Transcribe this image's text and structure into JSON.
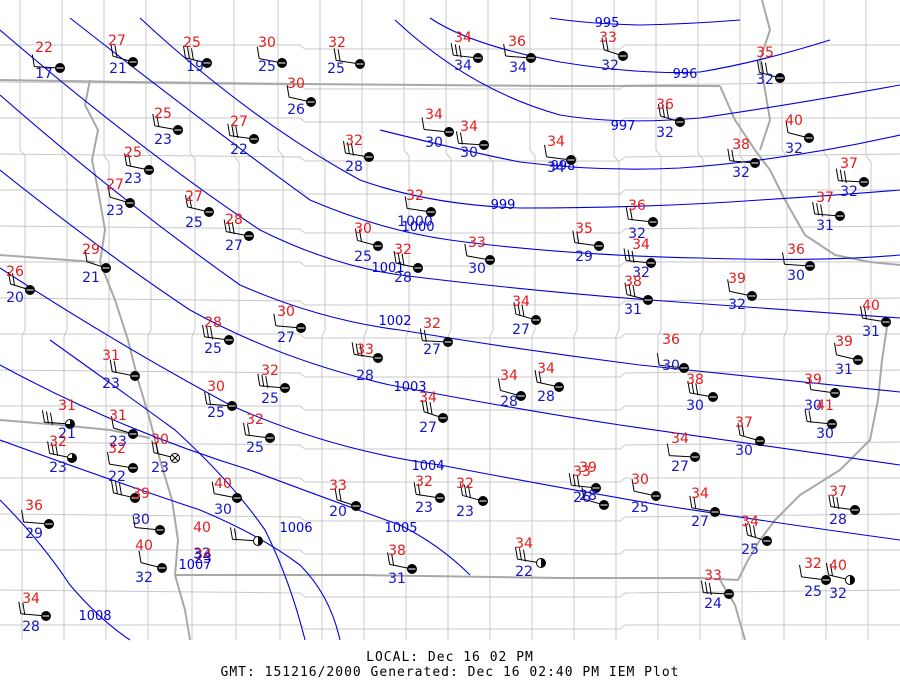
{
  "colors": {
    "temperature": "#e41a1c",
    "dewpoint": "#1515c8",
    "isobar": "#0000dd",
    "county_border": "#c8c8c8",
    "state_border": "#a8a8a8",
    "station": "#000000"
  },
  "footer": {
    "local": "LOCAL: Dec 16 02 PM",
    "gmt": "GMT: 151216/2000 Generated: Dec 16 02:40 PM IEM Plot"
  },
  "isobar_labels": [
    "995",
    "996",
    "997",
    "998",
    "999",
    "1000",
    "1001",
    "1002",
    "1003",
    "1004",
    "1005",
    "1006",
    "1007",
    "1008"
  ],
  "stations": [
    {
      "t": "22",
      "d": "17",
      "cover": "overcast"
    },
    {
      "t": "27",
      "d": "21",
      "cover": "overcast"
    },
    {
      "t": "25",
      "d": "19",
      "cover": "overcast"
    },
    {
      "t": "30",
      "d": "25",
      "cover": "overcast"
    },
    {
      "t": "32",
      "d": "25",
      "cover": "overcast"
    },
    {
      "t": "34",
      "d": "34",
      "cover": "overcast"
    },
    {
      "t": "36",
      "d": "34",
      "cover": "overcast"
    },
    {
      "t": "33",
      "d": "32",
      "cover": "overcast"
    },
    {
      "t": "35",
      "d": "32",
      "cover": "overcast"
    },
    {
      "t": "30",
      "d": "26",
      "cover": "overcast"
    },
    {
      "t": "25",
      "d": "23",
      "cover": "overcast"
    },
    {
      "t": "27",
      "d": "22",
      "cover": "overcast"
    },
    {
      "t": "34",
      "d": "30",
      "cover": "overcast"
    },
    {
      "t": "34",
      "d": "30",
      "cover": "overcast"
    },
    {
      "t": "36",
      "d": "32",
      "cover": "overcast"
    },
    {
      "t": "40",
      "d": "32",
      "cover": "overcast"
    },
    {
      "t": "25",
      "d": "23",
      "cover": "overcast"
    },
    {
      "t": "32",
      "d": "28",
      "cover": "overcast"
    },
    {
      "t": "34",
      "d": "34",
      "cover": "overcast"
    },
    {
      "t": "38",
      "d": "32",
      "cover": "overcast"
    },
    {
      "t": "37",
      "d": "32",
      "cover": "overcast"
    },
    {
      "t": "27",
      "d": "23",
      "cover": "overcast"
    },
    {
      "t": "27",
      "d": "25",
      "cover": "overcast"
    },
    {
      "t": "28",
      "d": "27",
      "cover": "overcast"
    },
    {
      "t": "32",
      "d": "1000",
      "cover": "overcast"
    },
    {
      "t": "36",
      "d": "32",
      "cover": "overcast"
    },
    {
      "t": "37",
      "d": "31",
      "cover": "overcast"
    },
    {
      "t": "29",
      "d": "21",
      "cover": "overcast"
    },
    {
      "t": "30",
      "d": "25",
      "cover": "overcast"
    },
    {
      "t": "32",
      "d": "28",
      "cover": "overcast"
    },
    {
      "t": "33",
      "d": "30",
      "cover": "overcast"
    },
    {
      "t": "35",
      "d": "29",
      "cover": "overcast"
    },
    {
      "t": "34",
      "d": "32",
      "cover": "overcast"
    },
    {
      "t": "36",
      "d": "30",
      "cover": "overcast"
    },
    {
      "t": "26",
      "d": "20",
      "cover": "overcast"
    },
    {
      "t": "38",
      "d": "31",
      "cover": "overcast"
    },
    {
      "t": "39",
      "d": "32",
      "cover": "overcast"
    },
    {
      "t": "40",
      "d": "31",
      "cover": "overcast"
    },
    {
      "t": "28",
      "d": "25",
      "cover": "overcast"
    },
    {
      "t": "30",
      "d": "27",
      "cover": "overcast"
    },
    {
      "t": "32",
      "d": "27",
      "cover": "overcast"
    },
    {
      "t": "34",
      "d": "27",
      "cover": "overcast"
    },
    {
      "t": "39",
      "d": "31",
      "cover": "overcast"
    },
    {
      "t": "31",
      "d": "23",
      "cover": "overcast"
    },
    {
      "t": "33",
      "d": "28",
      "cover": "overcast"
    },
    {
      "t": "36",
      "d": "30",
      "cover": "overcast"
    },
    {
      "t": "30",
      "d": "25",
      "cover": "overcast"
    },
    {
      "t": "34",
      "d": "27",
      "cover": "overcast"
    },
    {
      "t": "34",
      "d": "28",
      "cover": "overcast"
    },
    {
      "t": "34",
      "d": "28",
      "cover": "overcast"
    },
    {
      "t": "38",
      "d": "30",
      "cover": "overcast"
    },
    {
      "t": "39",
      "d": "30",
      "cover": "overcast"
    },
    {
      "t": "41",
      "d": "30",
      "cover": "overcast"
    },
    {
      "t": "31",
      "d": "21",
      "cover": "three-quarters"
    },
    {
      "t": "31",
      "d": "23",
      "cover": "overcast"
    },
    {
      "t": "30",
      "d": "23",
      "cover": "obscured"
    },
    {
      "t": "32",
      "d": "23",
      "cover": "three-quarters"
    },
    {
      "t": "32",
      "d": "22",
      "cover": "overcast"
    },
    {
      "t": "32",
      "d": "25",
      "cover": "overcast"
    },
    {
      "t": "32",
      "d": "25",
      "cover": "overcast"
    },
    {
      "t": "34",
      "d": "27",
      "cover": "overcast"
    },
    {
      "t": "37",
      "d": "30",
      "cover": "overcast"
    },
    {
      "t": "39",
      "d": "30",
      "cover": "overcast"
    },
    {
      "t": "40",
      "d": "30",
      "cover": "overcast"
    },
    {
      "t": "32",
      "d": "23",
      "cover": "overcast"
    },
    {
      "t": "33",
      "d": "26",
      "cover": "overcast"
    },
    {
      "t": "36",
      "d": "29",
      "cover": "overcast"
    },
    {
      "t": "33",
      "d": "20",
      "cover": "overcast"
    },
    {
      "t": "32",
      "d": "23",
      "cover": "overcast"
    },
    {
      "t": "30",
      "d": "25",
      "cover": "overcast"
    },
    {
      "t": "34",
      "d": "27",
      "cover": "overcast"
    },
    {
      "t": "37",
      "d": "28",
      "cover": "overcast"
    },
    {
      "t": "40",
      "d": "32",
      "cover": "overcast"
    },
    {
      "t": "40",
      "d": "32",
      "cover": "half"
    },
    {
      "t": "34",
      "d": "25",
      "cover": "overcast"
    },
    {
      "t": "34",
      "d": "23",
      "cover": "overcast"
    },
    {
      "t": "38",
      "d": "31",
      "cover": "overcast"
    },
    {
      "t": "34",
      "d": "22",
      "cover": "half"
    },
    {
      "t": "32",
      "d": "25",
      "cover": "overcast"
    },
    {
      "t": "34",
      "d": "28",
      "cover": "overcast"
    },
    {
      "t": "33",
      "d": "24",
      "cover": "overcast"
    },
    {
      "t": "39",
      "d": "28",
      "cover": "overcast"
    },
    {
      "t": "40",
      "d": "32",
      "cover": "half"
    }
  ]
}
